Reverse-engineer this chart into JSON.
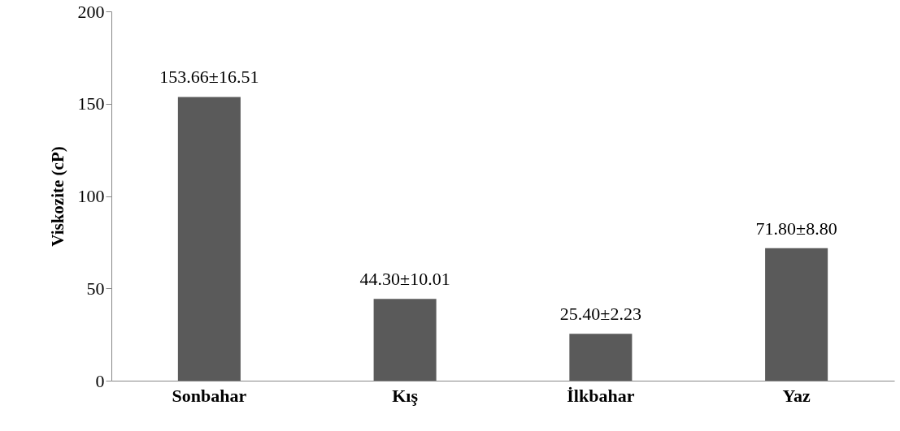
{
  "chart_data": {
    "type": "bar",
    "ylabel": "Viskozite (cP)",
    "categories": [
      "Sonbahar",
      "Kış",
      "İlkbahar",
      "Yaz"
    ],
    "values": [
      153.66,
      44.3,
      25.4,
      71.8
    ],
    "value_labels": [
      "153.66±16.51",
      "44.30±10.01",
      "25.40±2.23",
      "71.80±8.80"
    ],
    "color": "#5a5a5a",
    "ylim": [
      0,
      200
    ],
    "yticks": [
      0,
      50,
      100,
      150,
      200
    ],
    "grid": false
  }
}
